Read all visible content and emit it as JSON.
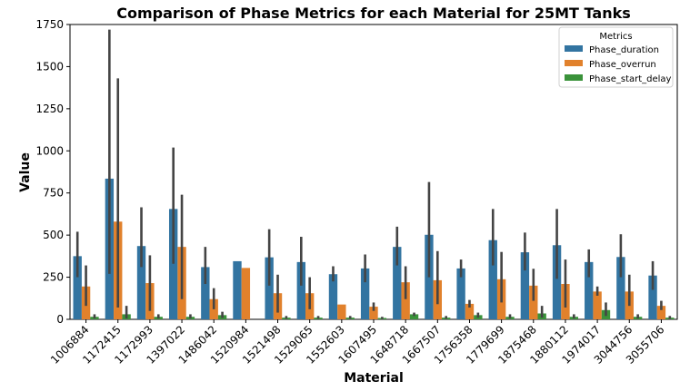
{
  "chart_data": {
    "type": "bar",
    "title": "Comparison of Phase Metrics for each Material for 25MT Tanks",
    "xlabel": "Material",
    "ylabel": "Value",
    "ylim": [
      0,
      1750
    ],
    "yticks": [
      0,
      250,
      500,
      750,
      1000,
      1250,
      1500,
      1750
    ],
    "legend": {
      "title": "Metrics",
      "position": "top-right"
    },
    "categories": [
      "1006884",
      "1172415",
      "1172993",
      "1397022",
      "1486042",
      "1520984",
      "1521498",
      "1529065",
      "1552603",
      "1607495",
      "1648718",
      "1667507",
      "1756358",
      "1779699",
      "1875468",
      "1880112",
      "1974017",
      "3044756",
      "3055706"
    ],
    "series": [
      {
        "name": "Phase_duration",
        "color": "#3274a1",
        "values": [
          375,
          835,
          435,
          655,
          310,
          345,
          368,
          340,
          268,
          302,
          430,
          502,
          302,
          470,
          398,
          440,
          340,
          370,
          260
        ],
        "ci_low": [
          250,
          270,
          310,
          330,
          210,
          null,
          200,
          200,
          225,
          220,
          320,
          250,
          250,
          320,
          290,
          240,
          250,
          250,
          175
        ],
        "ci_high": [
          520,
          1720,
          665,
          1020,
          430,
          null,
          535,
          490,
          315,
          385,
          550,
          815,
          355,
          655,
          515,
          655,
          415,
          505,
          345
        ]
      },
      {
        "name": "Phase_overrun",
        "color": "#e1812c",
        "values": [
          195,
          580,
          215,
          430,
          120,
          305,
          155,
          155,
          88,
          75,
          220,
          232,
          92,
          238,
          200,
          210,
          165,
          165,
          80
        ],
        "ci_low": [
          80,
          70,
          50,
          120,
          60,
          null,
          40,
          60,
          null,
          50,
          120,
          90,
          70,
          100,
          110,
          70,
          140,
          80,
          55
        ],
        "ci_high": [
          320,
          1430,
          380,
          740,
          185,
          null,
          265,
          250,
          null,
          100,
          315,
          405,
          115,
          400,
          300,
          355,
          195,
          265,
          110
        ]
      },
      {
        "name": "Phase_start_delay",
        "color": "#3a923a",
        "values": [
          15,
          30,
          15,
          15,
          25,
          0,
          10,
          10,
          10,
          8,
          30,
          10,
          25,
          15,
          35,
          15,
          55,
          15,
          10
        ],
        "ci_low": [
          5,
          5,
          5,
          5,
          8,
          null,
          3,
          3,
          3,
          2,
          20,
          3,
          10,
          5,
          10,
          5,
          20,
          5,
          2
        ],
        "ci_high": [
          30,
          80,
          30,
          30,
          45,
          null,
          20,
          20,
          20,
          15,
          40,
          20,
          40,
          30,
          80,
          30,
          100,
          30,
          20
        ]
      }
    ]
  }
}
